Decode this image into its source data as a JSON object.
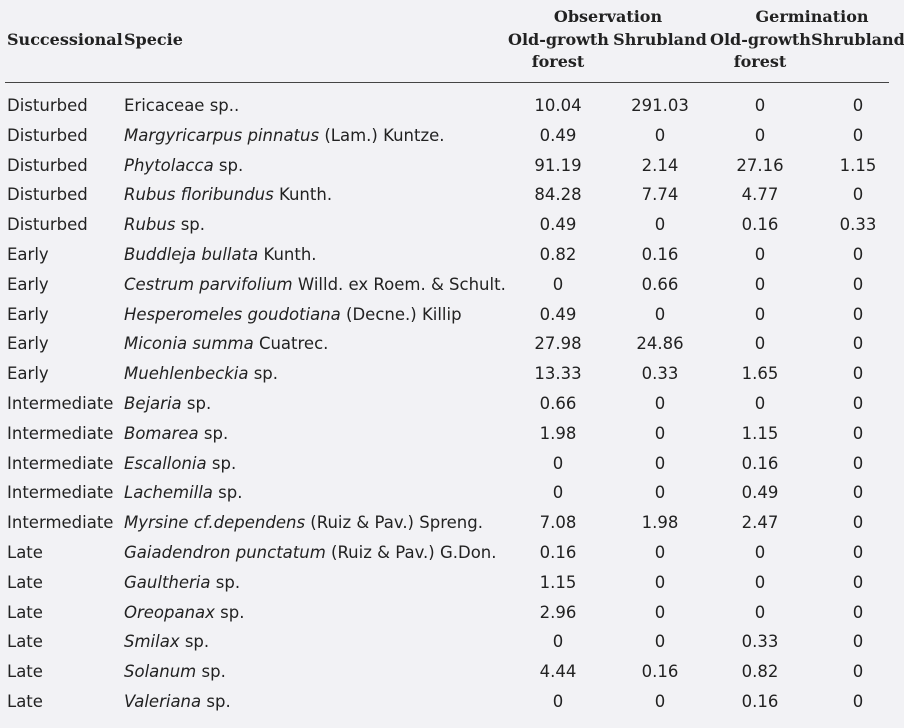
{
  "table": {
    "headers": {
      "successional": "Successional",
      "specie": "Specie",
      "observation": "Observation",
      "germination": "Germination",
      "obs_old_line1": "Old-growth",
      "obs_old_line2": "forest",
      "obs_shrubland": "Shrubland",
      "ger_old_line1": "Old-growth",
      "ger_old_line2": "forest",
      "ger_shrubland": "Shrubland"
    },
    "rows": [
      {
        "successional": "Disturbed",
        "genus": "Ericaceae sp..",
        "authority": "",
        "obs_old": "10.04",
        "obs_shrub": "291.03",
        "ger_old": "0",
        "ger_shrub": "0",
        "italic": false
      },
      {
        "successional": "Disturbed",
        "genus": "Margyricarpus pinnatus",
        "authority": " (Lam.) Kuntze.",
        "obs_old": "0.49",
        "obs_shrub": "0",
        "ger_old": "0",
        "ger_shrub": "0",
        "italic": true
      },
      {
        "successional": "Disturbed",
        "genus": "Phytolacca",
        "authority": " sp.",
        "obs_old": "91.19",
        "obs_shrub": "2.14",
        "ger_old": "27.16",
        "ger_shrub": "1.15",
        "italic": true
      },
      {
        "successional": "Disturbed",
        "genus": "Rubus floribundus",
        "authority": " Kunth.",
        "obs_old": "84.28",
        "obs_shrub": "7.74",
        "ger_old": "4.77",
        "ger_shrub": "0",
        "italic": true
      },
      {
        "successional": "Disturbed",
        "genus": "Rubus",
        "authority": " sp.",
        "obs_old": "0.49",
        "obs_shrub": "0",
        "ger_old": "0.16",
        "ger_shrub": "0.33",
        "italic": true
      },
      {
        "successional": "Early",
        "genus": "Buddleja bullata",
        "authority": " Kunth.",
        "obs_old": "0.82",
        "obs_shrub": "0.16",
        "ger_old": "0",
        "ger_shrub": "0",
        "italic": true
      },
      {
        "successional": "Early",
        "genus": "Cestrum parvifolium",
        "authority": " Willd. ex Roem. & Schult.",
        "obs_old": "0",
        "obs_shrub": "0.66",
        "ger_old": "0",
        "ger_shrub": "0",
        "italic": true
      },
      {
        "successional": "Early",
        "genus": "Hesperomeles goudotiana",
        "authority": " (Decne.) Killip",
        "obs_old": "0.49",
        "obs_shrub": "0",
        "ger_old": "0",
        "ger_shrub": "0",
        "italic": true
      },
      {
        "successional": "Early",
        "genus": "Miconia summa",
        "authority": " Cuatrec.",
        "obs_old": "27.98",
        "obs_shrub": "24.86",
        "ger_old": "0",
        "ger_shrub": "0",
        "italic": true
      },
      {
        "successional": "Early",
        "genus": "Muehlenbeckia",
        "authority": " sp.",
        "obs_old": "13.33",
        "obs_shrub": "0.33",
        "ger_old": "1.65",
        "ger_shrub": "0",
        "italic": true
      },
      {
        "successional": "Intermediate",
        "genus": "Bejaria",
        "authority": " sp.",
        "obs_old": "0.66",
        "obs_shrub": "0",
        "ger_old": "0",
        "ger_shrub": "0",
        "italic": true
      },
      {
        "successional": "Intermediate",
        "genus": "Bomarea",
        "authority": " sp.",
        "obs_old": "1.98",
        "obs_shrub": "0",
        "ger_old": "1.15",
        "ger_shrub": "0",
        "italic": true
      },
      {
        "successional": "Intermediate",
        "genus": "Escallonia",
        "authority": " sp.",
        "obs_old": "0",
        "obs_shrub": "0",
        "ger_old": "0.16",
        "ger_shrub": "0",
        "italic": true
      },
      {
        "successional": "Intermediate",
        "genus": "Lachemilla",
        "authority": " sp.",
        "obs_old": "0",
        "obs_shrub": "0",
        "ger_old": "0.49",
        "ger_shrub": "0",
        "italic": true
      },
      {
        "successional": "Intermediate",
        "genus": "Myrsine cf.dependens",
        "authority": " (Ruiz & Pav.) Spreng.",
        "obs_old": "7.08",
        "obs_shrub": "1.98",
        "ger_old": "2.47",
        "ger_shrub": "0",
        "italic": true
      },
      {
        "successional": "Late",
        "genus": "Gaiadendron punctatum",
        "authority": " (Ruiz & Pav.) G.Don.",
        "obs_old": "0.16",
        "obs_shrub": "0",
        "ger_old": "0",
        "ger_shrub": "0",
        "italic": true
      },
      {
        "successional": "Late",
        "genus": "Gaultheria",
        "authority": " sp.",
        "obs_old": "1.15",
        "obs_shrub": "0",
        "ger_old": "0",
        "ger_shrub": "0",
        "italic": true
      },
      {
        "successional": "Late",
        "genus": "Oreopanax",
        "authority": " sp.",
        "obs_old": "2.96",
        "obs_shrub": "0",
        "ger_old": "0",
        "ger_shrub": "0",
        "italic": true
      },
      {
        "successional": "Late",
        "genus": "Smilax",
        "authority": " sp.",
        "obs_old": "0",
        "obs_shrub": "0",
        "ger_old": "0.33",
        "ger_shrub": "0",
        "italic": true
      },
      {
        "successional": "Late",
        "genus": "Solanum",
        "authority": " sp.",
        "obs_old": "4.44",
        "obs_shrub": "0.16",
        "ger_old": "0.82",
        "ger_shrub": "0",
        "italic": true
      },
      {
        "successional": "Late",
        "genus": "Valeriana",
        "authority": " sp.",
        "obs_old": "0",
        "obs_shrub": "0",
        "ger_old": "0.16",
        "ger_shrub": "0",
        "italic": true
      }
    ]
  }
}
